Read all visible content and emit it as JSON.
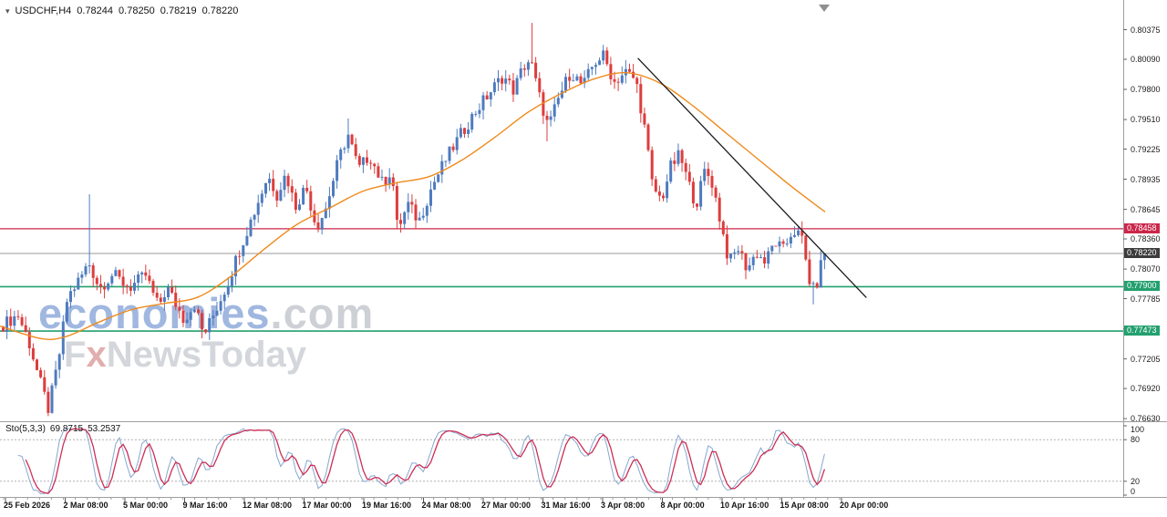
{
  "header": {
    "symbol": "USDCHF,H4"
  },
  "watermark": {
    "line1_main": "economies",
    "line1_suffix": ".com",
    "line2_pre": "F",
    "line2_x": "x",
    "line2_post": "NewsToday"
  },
  "chart_data": {
    "type": "candlestick",
    "symbol": "USDCHF",
    "timeframe": "H4",
    "last": {
      "open": "0.78244",
      "high": "0.78250",
      "low": "0.78219",
      "close": "0.78220"
    },
    "candle_count": 220,
    "colors": {
      "up": "#4e7bbf",
      "down": "#dd3d3d"
    },
    "price_axis": {
      "ylim": [
        0.76622,
        0.80643
      ],
      "ticks": [
        "0.80375",
        "0.80090",
        "0.79800",
        "0.79510",
        "0.79225",
        "0.78935",
        "0.78645",
        "0.78360",
        "0.78070",
        "0.77785",
        "0.77495",
        "0.77205",
        "0.76920",
        "0.76630"
      ]
    },
    "time_axis": {
      "ticks": [
        "25 Feb 2026",
        "2 Mar 08:00",
        "5 Mar 00:00",
        "9 Mar 16:00",
        "12 Mar 08:00",
        "17 Mar 00:00",
        "19 Mar 16:00",
        "24 Mar 08:00",
        "27 Mar 00:00",
        "31 Mar 16:00",
        "3 Apr 08:00",
        "8 Apr 00:00",
        "10 Apr 16:00",
        "15 Apr 08:00",
        "20 Apr 00:00"
      ]
    },
    "price_path": [
      [
        0.0,
        0.7752
      ],
      [
        0.02,
        0.7763
      ],
      [
        0.033,
        0.7738
      ],
      [
        0.046,
        0.7701
      ],
      [
        0.057,
        0.7672
      ],
      [
        0.069,
        0.7718
      ],
      [
        0.08,
        0.7779
      ],
      [
        0.097,
        0.78
      ],
      [
        0.106,
        0.7813
      ],
      [
        0.119,
        0.7789
      ],
      [
        0.135,
        0.7802
      ],
      [
        0.155,
        0.7789
      ],
      [
        0.175,
        0.7801
      ],
      [
        0.19,
        0.7771
      ],
      [
        0.201,
        0.7789
      ],
      [
        0.221,
        0.7759
      ],
      [
        0.234,
        0.7773
      ],
      [
        0.245,
        0.7743
      ],
      [
        0.256,
        0.7761
      ],
      [
        0.274,
        0.7793
      ],
      [
        0.29,
        0.7829
      ],
      [
        0.307,
        0.7863
      ],
      [
        0.323,
        0.7897
      ],
      [
        0.334,
        0.7879
      ],
      [
        0.345,
        0.7899
      ],
      [
        0.356,
        0.7867
      ],
      [
        0.369,
        0.7887
      ],
      [
        0.382,
        0.7847
      ],
      [
        0.393,
        0.7865
      ],
      [
        0.409,
        0.7913
      ],
      [
        0.42,
        0.7937
      ],
      [
        0.433,
        0.7903
      ],
      [
        0.446,
        0.7917
      ],
      [
        0.462,
        0.7889
      ],
      [
        0.473,
        0.7903
      ],
      [
        0.48,
        0.7845
      ],
      [
        0.493,
        0.7869
      ],
      [
        0.506,
        0.7853
      ],
      [
        0.522,
        0.7887
      ],
      [
        0.539,
        0.7913
      ],
      [
        0.557,
        0.7937
      ],
      [
        0.575,
        0.7959
      ],
      [
        0.592,
        0.7977
      ],
      [
        0.608,
        0.7993
      ],
      [
        0.621,
        0.7979
      ],
      [
        0.632,
        0.8001
      ],
      [
        0.641,
        0.8009
      ],
      [
        0.652,
        0.7973
      ],
      [
        0.663,
        0.7943
      ],
      [
        0.676,
        0.7973
      ],
      [
        0.69,
        0.7997
      ],
      [
        0.705,
        0.7983
      ],
      [
        0.718,
        0.8005
      ],
      [
        0.729,
        0.8013
      ],
      [
        0.743,
        0.7987
      ],
      [
        0.756,
        0.7997
      ],
      [
        0.769,
        0.7989
      ],
      [
        0.78,
        0.7941
      ],
      [
        0.789,
        0.7887
      ],
      [
        0.8,
        0.7873
      ],
      [
        0.811,
        0.7905
      ],
      [
        0.822,
        0.7917
      ],
      [
        0.833,
        0.7889
      ],
      [
        0.842,
        0.7869
      ],
      [
        0.853,
        0.7903
      ],
      [
        0.862,
        0.7889
      ],
      [
        0.873,
        0.7847
      ],
      [
        0.882,
        0.7813
      ],
      [
        0.893,
        0.7827
      ],
      [
        0.904,
        0.7807
      ],
      [
        0.915,
        0.7823
      ],
      [
        0.926,
        0.7813
      ],
      [
        0.937,
        0.7833
      ],
      [
        0.948,
        0.7825
      ],
      [
        0.959,
        0.7845
      ],
      [
        0.97,
        0.7837
      ],
      [
        0.979,
        0.7797
      ],
      [
        0.986,
        0.7783
      ],
      [
        0.992,
        0.7809
      ],
      [
        1.0,
        0.7822
      ]
    ],
    "spikes": [
      {
        "t": 0.057,
        "low": 0.7667
      },
      {
        "t": 0.106,
        "high": 0.7879
      },
      {
        "t": 0.42,
        "high": 0.7952
      },
      {
        "t": 0.641,
        "high": 0.8044
      },
      {
        "t": 0.663,
        "low": 0.793
      },
      {
        "t": 0.986,
        "low": 0.7773
      }
    ],
    "overlays": {
      "ma": {
        "color": "#ef8a1d",
        "points": [
          [
            0.0,
            0.7752
          ],
          [
            0.05,
            0.774
          ],
          [
            0.08,
            0.7742
          ],
          [
            0.12,
            0.7756
          ],
          [
            0.16,
            0.7768
          ],
          [
            0.2,
            0.7774
          ],
          [
            0.24,
            0.778
          ],
          [
            0.28,
            0.78
          ],
          [
            0.32,
            0.7826
          ],
          [
            0.36,
            0.785
          ],
          [
            0.4,
            0.7866
          ],
          [
            0.44,
            0.7882
          ],
          [
            0.48,
            0.789
          ],
          [
            0.52,
            0.7896
          ],
          [
            0.56,
            0.7912
          ],
          [
            0.6,
            0.7934
          ],
          [
            0.64,
            0.7958
          ],
          [
            0.68,
            0.7976
          ],
          [
            0.72,
            0.799
          ],
          [
            0.76,
            0.7996
          ],
          [
            0.8,
            0.7986
          ],
          [
            0.84,
            0.7964
          ],
          [
            0.88,
            0.7938
          ],
          [
            0.92,
            0.7912
          ],
          [
            0.96,
            0.7886
          ],
          [
            1.0,
            0.7862
          ]
        ]
      },
      "trendline": {
        "color": "#1a1a1a",
        "p1": {
          "t": 0.773,
          "price": 0.801
        },
        "p2": {
          "t": 1.05,
          "price": 0.77795
        }
      },
      "hlines": [
        {
          "price": 0.78458,
          "label": "0.78458",
          "color": "#cb2649",
          "width": 1.2,
          "role": "resistance"
        },
        {
          "price": 0.7822,
          "label": "0.78220",
          "color": "#9a9a9a",
          "badge": "#3c3c3c",
          "width": 1,
          "role": "current-price"
        },
        {
          "price": 0.779,
          "label": "0.77900",
          "color": "#23a06e",
          "width": 1.6,
          "role": "support"
        },
        {
          "price": 0.77473,
          "label": "0.77473",
          "color": "#23a06e",
          "width": 1.6,
          "role": "support-2"
        }
      ]
    },
    "sub_indicator": {
      "name": "Sto(5,3,3)",
      "k_value": "69.8715",
      "d_value": "53.2537",
      "k_color": "#86a7cf",
      "d_color": "#cc2e55",
      "levels": [
        100,
        80,
        20,
        0
      ],
      "levels_dotted": [
        80,
        20
      ]
    }
  }
}
